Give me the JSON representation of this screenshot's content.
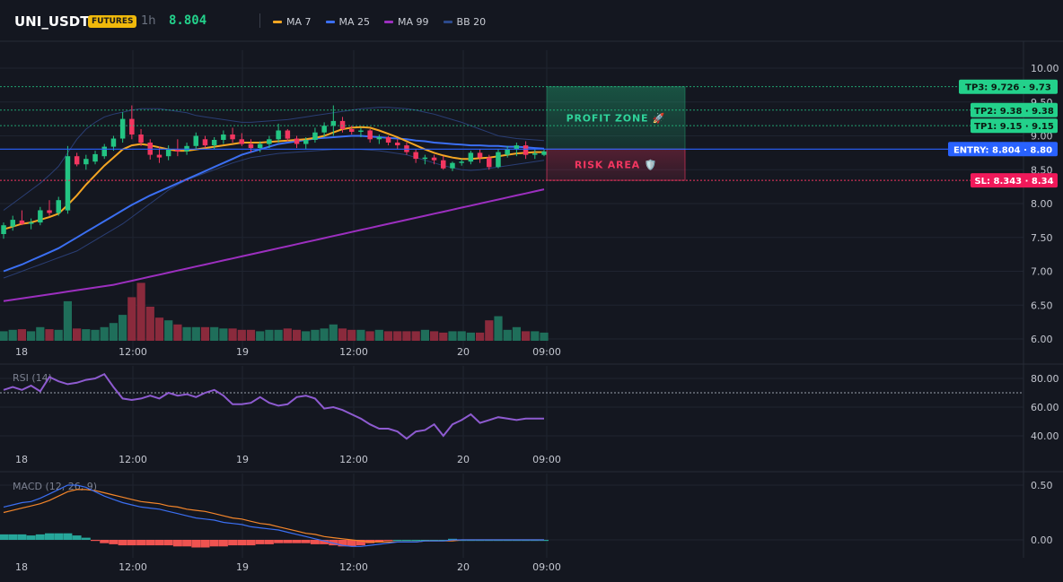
{
  "header": {
    "symbol": "UNI_USDT",
    "badge": "FUTURES",
    "interval": "1h",
    "last_price": "8.804"
  },
  "legend": [
    {
      "label": "MA 7",
      "color": "#f5a623"
    },
    {
      "label": "MA 25",
      "color": "#3b6ff2"
    },
    {
      "label": "MA 99",
      "color": "#9c2fbf"
    },
    {
      "label": "BB 20",
      "color": "#2c4a8c"
    }
  ],
  "colors": {
    "up": "#23c483",
    "down": "#f23660",
    "vol_up": "#1f6e5a",
    "vol_down": "#8a2a3c",
    "profit": "#1f9a6c",
    "risk": "#f23660",
    "entry": "#2962ff",
    "rsi": "#8e5bd0",
    "macd": "#3b6ff2",
    "signal": "#f5862a",
    "hist_up": "#26a69a",
    "hist_down": "#ef5350"
  },
  "zones": {
    "profit_label": "PROFIT ZONE 🚀",
    "risk_label": "RISK AREA 🛡️"
  },
  "price_tags": [
    {
      "name": "tp3",
      "text": "TP3: 9.726 · 9.73",
      "value": 9.726,
      "kind": "tp"
    },
    {
      "name": "tp2",
      "text": "TP2: 9.38 · 9.38",
      "value": 9.38,
      "kind": "tp"
    },
    {
      "name": "tp1",
      "text": "TP1: 9.15 · 9.15",
      "value": 9.15,
      "kind": "tp"
    },
    {
      "name": "entry",
      "text": "ENTRY: 8.804 · 8.80",
      "value": 8.804,
      "kind": "entry"
    },
    {
      "name": "sl",
      "text": "SL: 8.343 · 8.34",
      "value": 8.343,
      "kind": "sl"
    }
  ],
  "chart_data": [
    {
      "type": "candlestick",
      "title": "UNI_USDT",
      "x_ticks": [
        "18",
        "12:00",
        "19",
        "12:00",
        "20",
        "09:00"
      ],
      "y_ticks": [
        "10.00",
        "9.50",
        "9.00",
        "8.50",
        "8.00",
        "7.50",
        "7.00",
        "6.50",
        "6.00"
      ],
      "ylim": [
        6.0,
        10.1
      ],
      "ohlc": [
        [
          7.55,
          7.72,
          7.48,
          7.68
        ],
        [
          7.66,
          7.82,
          7.6,
          7.76
        ],
        [
          7.75,
          7.9,
          7.68,
          7.7
        ],
        [
          7.7,
          7.78,
          7.62,
          7.72
        ],
        [
          7.72,
          7.95,
          7.68,
          7.9
        ],
        [
          7.9,
          8.05,
          7.82,
          7.86
        ],
        [
          7.86,
          8.1,
          7.82,
          8.05
        ],
        [
          7.9,
          8.85,
          7.85,
          8.7
        ],
        [
          8.7,
          8.75,
          8.55,
          8.58
        ],
        [
          8.58,
          8.72,
          8.5,
          8.66
        ],
        [
          8.62,
          8.78,
          8.58,
          8.73
        ],
        [
          8.7,
          8.88,
          8.66,
          8.84
        ],
        [
          8.84,
          9.0,
          8.78,
          8.96
        ],
        [
          8.96,
          9.35,
          8.9,
          9.25
        ],
        [
          9.25,
          9.45,
          8.95,
          9.02
        ],
        [
          9.02,
          9.1,
          8.85,
          8.9
        ],
        [
          8.9,
          8.95,
          8.65,
          8.72
        ],
        [
          8.72,
          8.84,
          8.6,
          8.68
        ],
        [
          8.7,
          8.86,
          8.64,
          8.8
        ],
        [
          8.8,
          8.95,
          8.7,
          8.77
        ],
        [
          8.77,
          8.9,
          8.72,
          8.85
        ],
        [
          8.85,
          9.05,
          8.8,
          9.0
        ],
        [
          8.95,
          9.0,
          8.82,
          8.86
        ],
        [
          8.86,
          8.98,
          8.8,
          8.94
        ],
        [
          8.94,
          9.08,
          8.88,
          9.02
        ],
        [
          9.02,
          9.12,
          8.9,
          8.95
        ],
        [
          8.95,
          9.04,
          8.85,
          8.88
        ],
        [
          8.88,
          8.95,
          8.76,
          8.82
        ],
        [
          8.82,
          8.92,
          8.76,
          8.88
        ],
        [
          8.88,
          9.0,
          8.82,
          8.95
        ],
        [
          8.95,
          9.18,
          8.9,
          9.08
        ],
        [
          9.08,
          9.1,
          8.92,
          8.96
        ],
        [
          8.96,
          9.0,
          8.82,
          8.88
        ],
        [
          8.88,
          8.98,
          8.8,
          8.94
        ],
        [
          8.94,
          9.12,
          8.9,
          9.05
        ],
        [
          9.05,
          9.2,
          8.98,
          9.15
        ],
        [
          9.15,
          9.45,
          9.0,
          9.22
        ],
        [
          9.22,
          9.28,
          9.05,
          9.1
        ],
        [
          9.1,
          9.15,
          9.02,
          9.06
        ],
        [
          9.06,
          9.12,
          8.98,
          9.08
        ],
        [
          9.08,
          9.1,
          8.9,
          8.95
        ],
        [
          8.95,
          9.02,
          8.88,
          8.98
        ],
        [
          8.98,
          9.0,
          8.86,
          8.9
        ],
        [
          8.9,
          8.95,
          8.8,
          8.86
        ],
        [
          8.86,
          8.9,
          8.72,
          8.76
        ],
        [
          8.76,
          8.8,
          8.6,
          8.66
        ],
        [
          8.66,
          8.72,
          8.58,
          8.68
        ],
        [
          8.68,
          8.72,
          8.58,
          8.64
        ],
        [
          8.64,
          8.7,
          8.5,
          8.52
        ],
        [
          8.52,
          8.62,
          8.48,
          8.6
        ],
        [
          8.6,
          8.66,
          8.56,
          8.62
        ],
        [
          8.62,
          8.78,
          8.58,
          8.75
        ],
        [
          8.75,
          8.8,
          8.6,
          8.68
        ],
        [
          8.68,
          8.72,
          8.5,
          8.54
        ],
        [
          8.54,
          8.8,
          8.52,
          8.76
        ],
        [
          8.72,
          8.85,
          8.68,
          8.8
        ],
        [
          8.8,
          8.9,
          8.7,
          8.86
        ],
        [
          8.86,
          8.92,
          8.66,
          8.72
        ],
        [
          8.72,
          8.8,
          8.66,
          8.74
        ],
        [
          8.72,
          8.8,
          8.7,
          8.77
        ]
      ],
      "ma7": [
        7.62,
        7.66,
        7.7,
        7.72,
        7.76,
        7.8,
        7.85,
        7.98,
        8.12,
        8.28,
        8.42,
        8.56,
        8.68,
        8.8,
        8.86,
        8.88,
        8.86,
        8.83,
        8.8,
        8.78,
        8.78,
        8.8,
        8.82,
        8.84,
        8.86,
        8.88,
        8.9,
        8.9,
        8.9,
        8.91,
        8.92,
        8.93,
        8.94,
        8.95,
        8.97,
        9.0,
        9.05,
        9.1,
        9.12,
        9.13,
        9.12,
        9.08,
        9.03,
        8.98,
        8.92,
        8.86,
        8.8,
        8.75,
        8.71,
        8.68,
        8.66,
        8.66,
        8.67,
        8.68,
        8.7,
        8.72,
        8.74,
        8.75,
        8.76,
        8.76
      ],
      "ma25": [
        7.0,
        7.05,
        7.1,
        7.16,
        7.22,
        7.28,
        7.34,
        7.42,
        7.5,
        7.58,
        7.66,
        7.74,
        7.82,
        7.9,
        7.98,
        8.05,
        8.12,
        8.18,
        8.24,
        8.3,
        8.36,
        8.42,
        8.48,
        8.54,
        8.6,
        8.66,
        8.72,
        8.76,
        8.8,
        8.84,
        8.88,
        8.9,
        8.92,
        8.94,
        8.96,
        8.97,
        8.98,
        8.99,
        9.0,
        9.0,
        8.99,
        8.98,
        8.97,
        8.96,
        8.95,
        8.93,
        8.92,
        8.9,
        8.89,
        8.88,
        8.87,
        8.86,
        8.86,
        8.85,
        8.85,
        8.84,
        8.84,
        8.83,
        8.82,
        8.81
      ],
      "ma99": [
        6.56,
        6.58,
        6.6,
        6.62,
        6.64,
        6.66,
        6.68,
        6.7,
        6.72,
        6.74,
        6.76,
        6.78,
        6.8,
        6.83,
        6.86,
        6.89,
        6.92,
        6.95,
        6.98,
        7.01,
        7.04,
        7.07,
        7.1,
        7.13,
        7.16,
        7.19,
        7.22,
        7.25,
        7.28,
        7.31,
        7.34,
        7.37,
        7.4,
        7.43,
        7.46,
        7.49,
        7.52,
        7.55,
        7.58,
        7.61,
        7.64,
        7.67,
        7.7,
        7.73,
        7.76,
        7.79,
        7.82,
        7.85,
        7.88,
        7.91,
        7.94,
        7.97,
        8.0,
        8.03,
        8.06,
        8.09,
        8.12,
        8.15,
        8.18,
        8.21
      ],
      "bb_upper": [
        7.9,
        8.0,
        8.1,
        8.2,
        8.3,
        8.42,
        8.55,
        8.75,
        8.95,
        9.1,
        9.2,
        9.28,
        9.32,
        9.35,
        9.38,
        9.4,
        9.4,
        9.4,
        9.38,
        9.36,
        9.34,
        9.3,
        9.28,
        9.26,
        9.24,
        9.22,
        9.2,
        9.2,
        9.21,
        9.22,
        9.23,
        9.24,
        9.26,
        9.28,
        9.3,
        9.32,
        9.34,
        9.36,
        9.38,
        9.4,
        9.41,
        9.42,
        9.42,
        9.41,
        9.4,
        9.38,
        9.35,
        9.32,
        9.28,
        9.24,
        9.2,
        9.15,
        9.1,
        9.05,
        9.0,
        8.98,
        8.96,
        8.95,
        8.94,
        8.93
      ],
      "bb_lower": [
        6.9,
        6.95,
        7.0,
        7.05,
        7.1,
        7.15,
        7.2,
        7.25,
        7.3,
        7.38,
        7.46,
        7.54,
        7.62,
        7.7,
        7.8,
        7.9,
        8.0,
        8.1,
        8.2,
        8.28,
        8.35,
        8.4,
        8.45,
        8.5,
        8.55,
        8.6,
        8.64,
        8.68,
        8.7,
        8.72,
        8.74,
        8.75,
        8.76,
        8.77,
        8.78,
        8.79,
        8.8,
        8.8,
        8.8,
        8.8,
        8.79,
        8.78,
        8.76,
        8.74,
        8.72,
        8.68,
        8.64,
        8.6,
        8.56,
        8.53,
        8.5,
        8.49,
        8.5,
        8.52,
        8.54,
        8.56,
        8.58,
        8.6,
        8.62,
        8.64
      ],
      "volume": [
        14,
        16,
        17,
        14,
        20,
        17,
        16,
        58,
        18,
        17,
        16,
        20,
        26,
        38,
        64,
        85,
        50,
        34,
        30,
        24,
        20,
        20,
        20,
        20,
        18,
        18,
        16,
        16,
        14,
        16,
        16,
        18,
        16,
        14,
        16,
        18,
        24,
        18,
        16,
        16,
        14,
        16,
        14,
        14,
        14,
        14,
        16,
        14,
        12,
        14,
        14,
        12,
        12,
        30,
        36,
        16,
        20,
        14,
        14,
        12
      ]
    },
    {
      "type": "line",
      "title": "RSI (14)",
      "y_ticks": [
        "80.00",
        "60.00",
        "40.00"
      ],
      "ylim": [
        30,
        90
      ],
      "overbought": 70,
      "series": [
        {
          "values": [
            72,
            74,
            72,
            75,
            71,
            81,
            78,
            76,
            77,
            79,
            80,
            83,
            74,
            66,
            65,
            66,
            68,
            66,
            70,
            68,
            69,
            67,
            70,
            72,
            68,
            62,
            62,
            63,
            67,
            63,
            61,
            62,
            67,
            68,
            66,
            59,
            60,
            58,
            55,
            52,
            48,
            45,
            45,
            43,
            38,
            43,
            44,
            48,
            40,
            48,
            51,
            55,
            49,
            51,
            53,
            52,
            51,
            52,
            52,
            52
          ]
        }
      ]
    },
    {
      "type": "line",
      "title": "MACD (12, 26, 9)",
      "y_ticks": [
        "0.50",
        "0.00"
      ],
      "ylim": [
        -0.22,
        0.6
      ],
      "series": [
        {
          "values": [
            0.3,
            0.32,
            0.34,
            0.35,
            0.38,
            0.42,
            0.46,
            0.5,
            0.5,
            0.48,
            0.44,
            0.4,
            0.37,
            0.34,
            0.32,
            0.3,
            0.29,
            0.28,
            0.26,
            0.24,
            0.22,
            0.2,
            0.19,
            0.18,
            0.16,
            0.15,
            0.14,
            0.12,
            0.11,
            0.1,
            0.09,
            0.07,
            0.05,
            0.03,
            0.01,
            -0.01,
            -0.03,
            -0.05,
            -0.06,
            -0.06,
            -0.05,
            -0.04,
            -0.03,
            -0.02,
            -0.02,
            -0.02,
            -0.01,
            -0.01,
            -0.01,
            0.0,
            0.0,
            0.0,
            0.0,
            0.0,
            0.0,
            0.0,
            0.0,
            0.0,
            0.0,
            0.0
          ]
        },
        {
          "values": [
            0.25,
            0.27,
            0.29,
            0.31,
            0.33,
            0.36,
            0.4,
            0.44,
            0.46,
            0.46,
            0.45,
            0.43,
            0.41,
            0.39,
            0.37,
            0.35,
            0.34,
            0.33,
            0.31,
            0.3,
            0.28,
            0.27,
            0.26,
            0.24,
            0.22,
            0.2,
            0.19,
            0.17,
            0.15,
            0.14,
            0.12,
            0.1,
            0.08,
            0.06,
            0.05,
            0.03,
            0.02,
            0.01,
            0.0,
            -0.01,
            -0.02,
            -0.02,
            -0.02,
            -0.02,
            -0.02,
            -0.02,
            -0.01,
            -0.01,
            -0.01,
            -0.01,
            0.0,
            0.0,
            0.0,
            0.0,
            0.0,
            0.0,
            0.0,
            0.0,
            0.0,
            0.0
          ]
        }
      ],
      "histogram": [
        0.05,
        0.05,
        0.05,
        0.04,
        0.05,
        0.06,
        0.06,
        0.06,
        0.04,
        0.02,
        -0.01,
        -0.03,
        -0.04,
        -0.05,
        -0.05,
        -0.05,
        -0.05,
        -0.05,
        -0.05,
        -0.06,
        -0.06,
        -0.07,
        -0.07,
        -0.06,
        -0.06,
        -0.05,
        -0.05,
        -0.05,
        -0.04,
        -0.04,
        -0.03,
        -0.03,
        -0.03,
        -0.03,
        -0.04,
        -0.04,
        -0.05,
        -0.06,
        -0.06,
        -0.05,
        -0.03,
        -0.02,
        -0.01,
        0.0,
        0.0,
        0.0,
        0.0,
        0.0,
        0.0,
        0.01,
        0.0,
        0.0,
        0.0,
        0.0,
        0.0,
        0.0,
        0.0,
        0.0,
        0.0,
        0.0
      ]
    }
  ]
}
